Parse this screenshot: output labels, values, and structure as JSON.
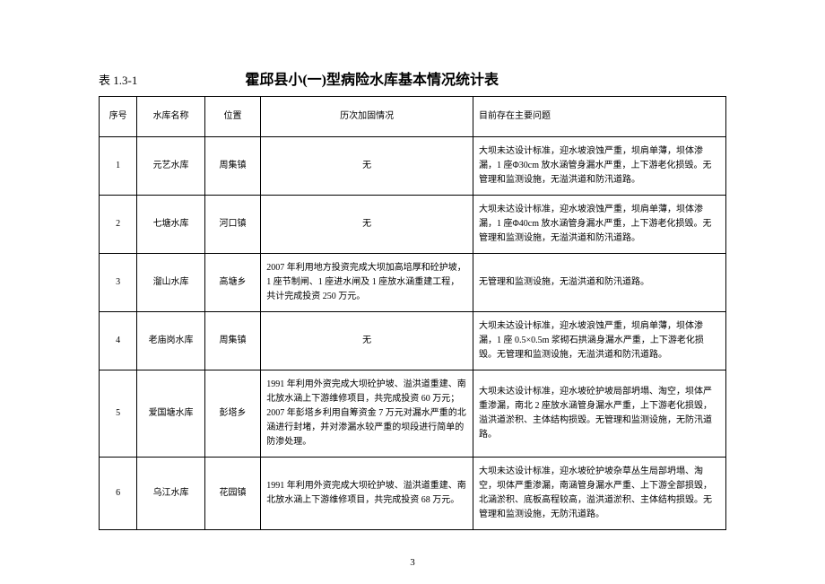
{
  "table_ref": "表 1.3-1",
  "title": "霍邱县小(一)型病险水库基本情况统计表",
  "headers": {
    "seq": "序号",
    "name": "水库名称",
    "loc": "位置",
    "hist": "历次加固情况",
    "prob": "目前存在主要问题"
  },
  "rows": [
    {
      "seq": "1",
      "name": "元艺水库",
      "loc": "周集镇",
      "hist": "无",
      "hist_center": true,
      "prob": "大坝未达设计标准，迎水坡浪蚀严重，坝肩单薄，坝体渗漏，1 座Φ30cm 放水涵管身漏水严重，上下游老化损毁。无管理和监测设施，无溢洪道和防汛道路。"
    },
    {
      "seq": "2",
      "name": "七塘水库",
      "loc": "河口镇",
      "hist": "无",
      "hist_center": true,
      "prob": "大坝未达设计标准，迎水坡浪蚀严重，坝肩单薄，坝体渗漏，1 座Φ40cm 放水涵管身漏水严重，上下游老化损毁。无管理和监测设施，无溢洪道和防汛道路。"
    },
    {
      "seq": "3",
      "name": "溜山水库",
      "loc": "高塘乡",
      "hist": "2007 年利用地方投资完成大坝加高培厚和砼护坡，1 座节制闸、1 座进水闸及 1 座放水涵重建工程，共计完成投资 250 万元。",
      "hist_center": false,
      "prob": "无管理和监测设施，无溢洪道和防汛道路。"
    },
    {
      "seq": "4",
      "name": "老庙岗水库",
      "loc": "周集镇",
      "hist": "无",
      "hist_center": true,
      "prob": "大坝未达设计标准，迎水坡浪蚀严重，坝肩单薄，坝体渗漏，1 座 0.5×0.5m 浆砌石拱涵身漏水严重，上下游老化损毁。无管理和监测设施，无溢洪道和防汛道路。"
    },
    {
      "seq": "5",
      "name": "爱国塘水库",
      "loc": "彭塔乡",
      "hist": "1991 年利用外资完成大坝砼护坡、溢洪道重建、南北放水涵上下游维修项目，共完成投资 60 万元；2007 年彭塔乡利用自筹资金 7 万元对漏水严重的北涵进行封堵，并对渗漏水较严重的坝段进行简单的防渗处理。",
      "hist_center": false,
      "prob": "大坝未达设计标准，迎水坡砼护坡局部坍塌、淘空，坝体严重渗漏，南北 2 座放水涵管身漏水严重，上下游老化损毁，溢洪道淤积、主体结构损毁。无管理和监测设施，无防汛道路。"
    },
    {
      "seq": "6",
      "name": "乌江水库",
      "loc": "花园镇",
      "hist": "1991 年利用外资完成大坝砼护坡、溢洪道重建、南北放水涵上下游维修项目，共完成投资 68 万元。",
      "hist_center": false,
      "prob": "大坝未达设计标准，迎水坡砼护坡杂草丛生局部坍塌、淘空，坝体严重渗漏，南涵管身漏水严重、上下游全部损毁，北涵淤积、底板高程较高，溢洪道淤积、主体结构损毁。无管理和监测设施，无防汛道路。"
    }
  ],
  "page_number": "3"
}
